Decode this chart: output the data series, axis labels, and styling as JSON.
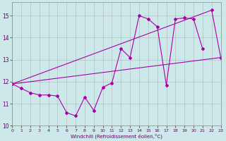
{
  "bg_color": "#cce8e8",
  "grid_color": "#999999",
  "line_color": "#aa00aa",
  "x_min": 0,
  "x_max": 23,
  "y_min": 10,
  "y_max": 15.6,
  "yticks": [
    10,
    11,
    12,
    13,
    14,
    15
  ],
  "xticks": [
    0,
    1,
    2,
    3,
    4,
    5,
    6,
    7,
    8,
    9,
    10,
    11,
    12,
    13,
    14,
    15,
    16,
    17,
    18,
    19,
    20,
    21,
    22,
    23
  ],
  "xlabel": "Windchill (Refroidissement éolien,°C)",
  "line1_x": [
    0,
    1,
    2,
    3,
    4,
    5,
    6,
    7,
    8,
    9,
    10,
    11,
    12,
    13,
    14,
    15,
    16,
    17,
    18,
    19,
    20,
    21
  ],
  "line1_y": [
    11.9,
    11.7,
    11.5,
    11.4,
    11.4,
    11.35,
    10.6,
    10.45,
    11.3,
    10.7,
    11.75,
    11.95,
    13.5,
    13.1,
    15.0,
    14.85,
    14.5,
    11.85,
    14.85,
    14.9,
    14.85,
    13.5
  ],
  "line2_x": [
    0,
    22,
    23
  ],
  "line2_y": [
    11.9,
    15.25,
    13.1
  ],
  "line3_x": [
    0,
    23
  ],
  "line3_y": [
    11.9,
    13.1
  ]
}
